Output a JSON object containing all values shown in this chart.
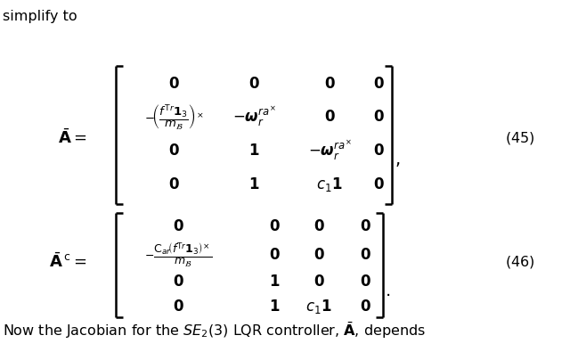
{
  "background_color": "#ffffff",
  "text_color": "#000000",
  "figsize": [
    6.4,
    4.04
  ],
  "dpi": 100
}
